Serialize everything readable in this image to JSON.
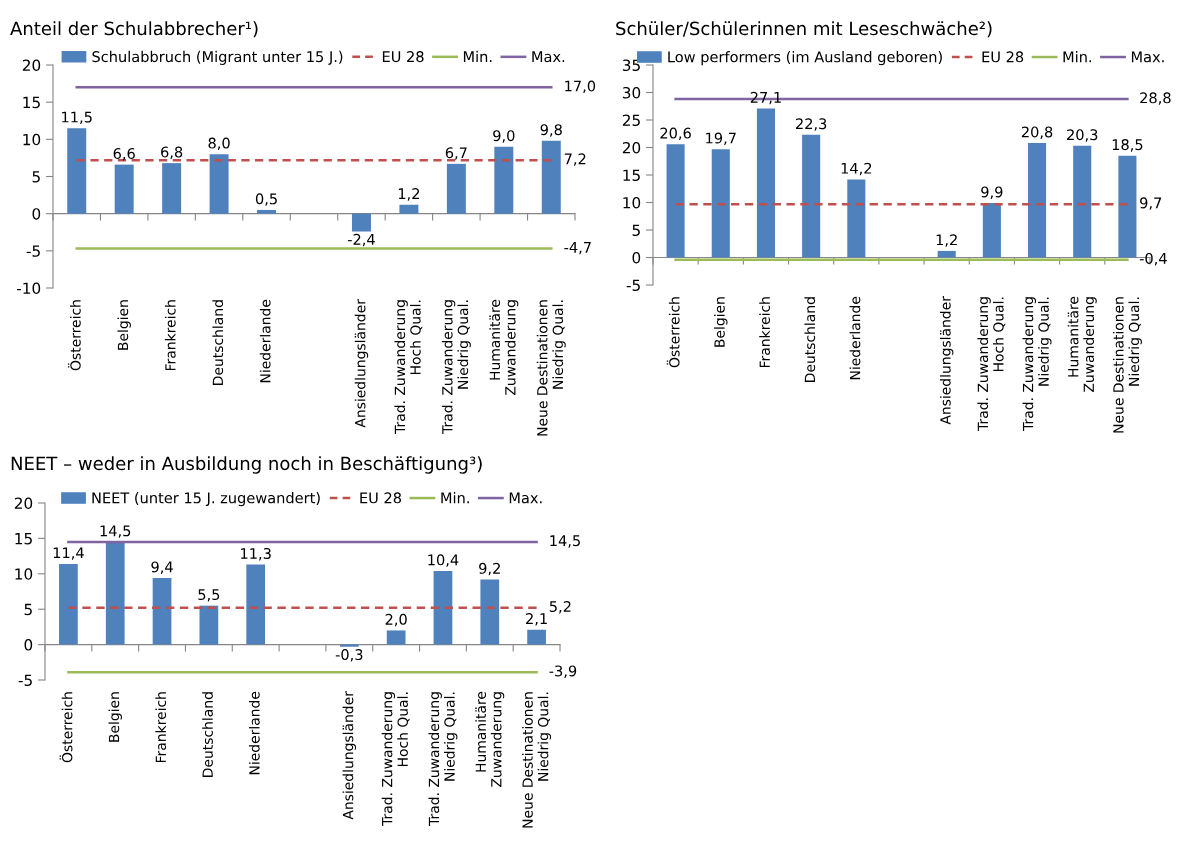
{
  "chart_data": [
    {
      "type": "bar",
      "title": "Anteil der Schulabbrecher¹)",
      "categories": [
        "Österreich",
        "Belgien",
        "Frankreich",
        "Deutschland",
        "Niederlande",
        null,
        "Ansiedlungsländer",
        "Trad. Zuwanderung\nHoch Qual.",
        "Trad. Zuwanderung\nNiedrig Qual.",
        "Humanitäre\nZuwanderung",
        "Neue Destinationen\nNiedrig Qual."
      ],
      "series": [
        {
          "name": "Schulabbruch (Migrant unter 15 J.)",
          "color": "#4f81bd",
          "values": [
            11.5,
            6.6,
            6.8,
            8.0,
            0.5,
            null,
            -2.4,
            1.2,
            6.7,
            9.0,
            9.8
          ],
          "value_labels": [
            "11,5",
            "6,6",
            "6,8",
            "8,0",
            "0,5",
            null,
            "-2,4",
            "1,2",
            "6,7",
            "9,0",
            "9,8"
          ]
        },
        {
          "name": "EU 28",
          "type": "line",
          "line_style": "dashed",
          "color": "#c0504d",
          "values": [
            7.2,
            7.2,
            7.2,
            7.2,
            7.2,
            7.2,
            7.2,
            7.2,
            7.2,
            7.2,
            7.2
          ],
          "value_labels": [
            null,
            null,
            null,
            null,
            null,
            null,
            null,
            null,
            null,
            null,
            "7,2"
          ]
        },
        {
          "name": "Min.",
          "type": "line",
          "line_style": "solid",
          "color": "#9bbb59",
          "values": [
            -4.7,
            -4.7,
            -4.7,
            -4.7,
            -4.7,
            -4.7,
            -4.7,
            -4.7,
            -4.7,
            -4.7,
            -4.7
          ],
          "value_labels": [
            null,
            null,
            null,
            null,
            null,
            null,
            null,
            null,
            null,
            null,
            "-4,7"
          ]
        },
        {
          "name": "Max.",
          "type": "line",
          "line_style": "solid",
          "color": "#8064a2",
          "values": [
            17.0,
            17.0,
            17.0,
            17.0,
            17.0,
            17.0,
            17.0,
            17.0,
            17.0,
            17.0,
            17.0
          ],
          "value_labels": [
            null,
            null,
            null,
            null,
            null,
            null,
            null,
            null,
            null,
            null,
            "17,0"
          ]
        }
      ],
      "ylim": [
        -10,
        20
      ],
      "yticks": [
        -10,
        -5,
        0,
        5,
        10,
        15,
        20
      ],
      "legend": "top"
    },
    {
      "type": "bar",
      "title": "Schüler/Schülerinnen mit Leseschwäche²)",
      "categories": [
        "Österreich",
        "Belgien",
        "Frankreich",
        "Deutschland",
        "Niederlande",
        null,
        "Ansiedlungsländer",
        "Trad. Zuwanderung\nHoch Qual.",
        "Trad. Zuwanderung\nNiedrig Qual.",
        "Humanitäre\nZuwanderung",
        "Neue Destinationen\nNiedrig Qual."
      ],
      "series": [
        {
          "name": "Low performers (im Ausland geboren)",
          "color": "#4f81bd",
          "values": [
            20.6,
            19.7,
            27.1,
            22.3,
            14.2,
            null,
            1.2,
            9.9,
            20.8,
            20.3,
            18.5
          ],
          "value_labels": [
            "20,6",
            "19,7",
            "27,1",
            "22,3",
            "14,2",
            null,
            "1,2",
            "9,9",
            "20,8",
            "20,3",
            "18,5"
          ]
        },
        {
          "name": "EU 28",
          "type": "line",
          "line_style": "dashed",
          "color": "#c0504d",
          "values": [
            9.7,
            9.7,
            9.7,
            9.7,
            9.7,
            9.7,
            9.7,
            9.7,
            9.7,
            9.7,
            9.7
          ],
          "value_labels": [
            null,
            null,
            null,
            null,
            null,
            null,
            null,
            null,
            null,
            null,
            "9,7"
          ]
        },
        {
          "name": "Min.",
          "type": "line",
          "line_style": "solid",
          "color": "#9bbb59",
          "values": [
            -0.4,
            -0.4,
            -0.4,
            -0.4,
            -0.4,
            -0.4,
            -0.4,
            -0.4,
            -0.4,
            -0.4,
            -0.4
          ],
          "value_labels": [
            null,
            null,
            null,
            null,
            null,
            null,
            null,
            null,
            null,
            null,
            "-0,4"
          ]
        },
        {
          "name": "Max.",
          "type": "line",
          "line_style": "solid",
          "color": "#8064a2",
          "values": [
            28.8,
            28.8,
            28.8,
            28.8,
            28.8,
            28.8,
            28.8,
            28.8,
            28.8,
            28.8,
            28.8
          ],
          "value_labels": [
            null,
            null,
            null,
            null,
            null,
            null,
            null,
            null,
            null,
            null,
            "28,8"
          ]
        }
      ],
      "ylim": [
        -5,
        35
      ],
      "yticks": [
        -5,
        0,
        5,
        10,
        15,
        20,
        25,
        30,
        35
      ],
      "legend": "top"
    },
    {
      "type": "bar",
      "title": "NEET – weder in Ausbildung noch in Beschäftigung³)",
      "categories": [
        "Österreich",
        "Belgien",
        "Frankreich",
        "Deutschland",
        "Niederlande",
        null,
        "Ansiedlungsländer",
        "Trad. Zuwanderung\nHoch Qual.",
        "Trad. Zuwanderung\nNiedrig Qual.",
        "Humanitäre\nZuwanderung",
        "Neue Destinationen\nNiedrig Qual."
      ],
      "series": [
        {
          "name": "NEET (unter 15 J. zugewandert)",
          "color": "#4f81bd",
          "values": [
            11.4,
            14.5,
            9.4,
            5.5,
            11.3,
            null,
            -0.3,
            2.0,
            10.4,
            9.2,
            2.1
          ],
          "value_labels": [
            "11,4",
            "14,5",
            "9,4",
            "5,5",
            "11,3",
            null,
            "-0,3",
            "2,0",
            "10,4",
            "9,2",
            "2,1"
          ]
        },
        {
          "name": "EU 28",
          "type": "line",
          "line_style": "dashed",
          "color": "#c0504d",
          "values": [
            5.2,
            5.2,
            5.2,
            5.2,
            5.2,
            5.2,
            5.2,
            5.2,
            5.2,
            5.2,
            5.2
          ],
          "value_labels": [
            null,
            null,
            null,
            null,
            null,
            null,
            null,
            null,
            null,
            null,
            "5,2"
          ]
        },
        {
          "name": "Min.",
          "type": "line",
          "line_style": "solid",
          "color": "#9bbb59",
          "values": [
            -3.9,
            -3.9,
            -3.9,
            -3.9,
            -3.9,
            -3.9,
            -3.9,
            -3.9,
            -3.9,
            -3.9,
            -3.9
          ],
          "value_labels": [
            null,
            null,
            null,
            null,
            null,
            null,
            null,
            null,
            null,
            null,
            "-3,9"
          ]
        },
        {
          "name": "Max.",
          "type": "line",
          "line_style": "solid",
          "color": "#8064a2",
          "values": [
            14.5,
            14.5,
            14.5,
            14.5,
            14.5,
            14.5,
            14.5,
            14.5,
            14.5,
            14.5,
            14.5
          ],
          "value_labels": [
            null,
            null,
            null,
            null,
            null,
            null,
            null,
            null,
            null,
            null,
            "14,5"
          ]
        }
      ],
      "ylim": [
        -5,
        20
      ],
      "yticks": [
        -5,
        0,
        5,
        10,
        15,
        20
      ],
      "legend": "top"
    }
  ]
}
